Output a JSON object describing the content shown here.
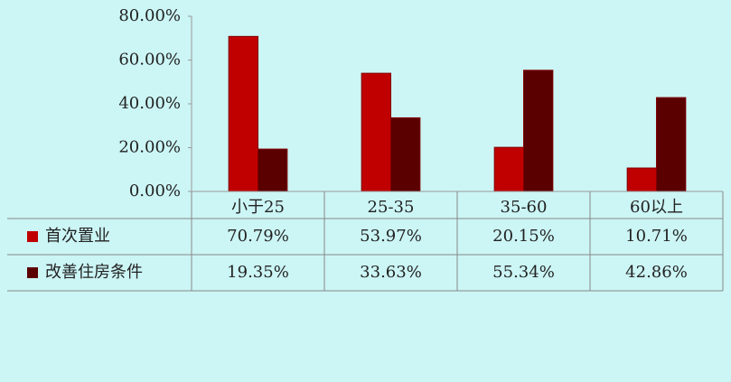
{
  "chart_data": {
    "type": "bar",
    "categories": [
      "小于25",
      "25-35",
      "35-60",
      "60以上"
    ],
    "series": [
      {
        "name": "首次置业",
        "color": "#c00000",
        "values": [
          70.79,
          53.97,
          20.15,
          10.71
        ],
        "value_labels": [
          "70.79%",
          "53.97%",
          "20.15%",
          "10.71%"
        ]
      },
      {
        "name": "改善住房条件",
        "color": "#5a0000",
        "values": [
          19.35,
          33.63,
          55.34,
          42.86
        ],
        "value_labels": [
          "19.35%",
          "33.63%",
          "55.34%",
          "42.86%"
        ]
      }
    ],
    "ylim": [
      0,
      80
    ],
    "yticks": [
      {
        "value": 0,
        "label": "0.00%"
      },
      {
        "value": 20,
        "label": "20.00%"
      },
      {
        "value": 40,
        "label": "40.00%"
      },
      {
        "value": 60,
        "label": "60.00%"
      },
      {
        "value": 80,
        "label": "80.00%"
      }
    ],
    "data_table": true
  }
}
